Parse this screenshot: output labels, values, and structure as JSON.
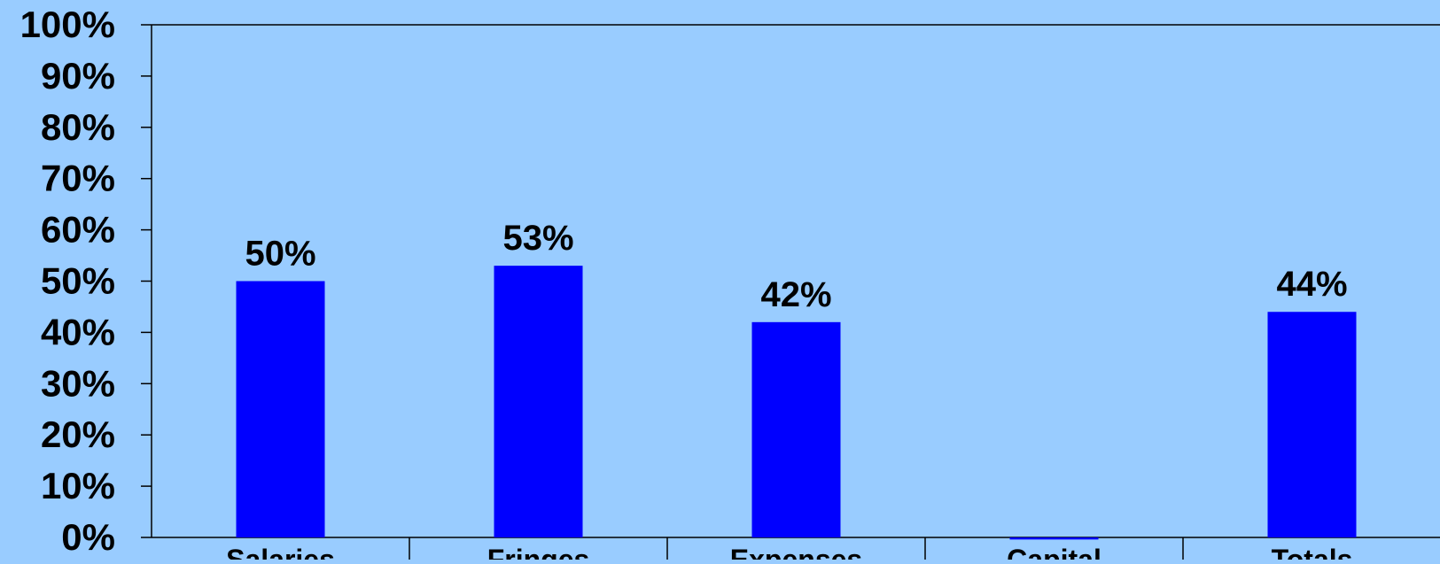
{
  "colors": {
    "background": "#99ccff",
    "plot_area": "#99ccff",
    "bar": "#0000ff",
    "axis": "#000000",
    "text": "#000000"
  },
  "chart_data": {
    "type": "bar",
    "title": "",
    "xlabel": "",
    "ylabel": "",
    "categories": [
      "Salaries",
      "Fringes",
      "Expenses",
      "Capital",
      "Totals"
    ],
    "values": [
      50,
      53,
      42,
      -0.4,
      44
    ],
    "data_labels": [
      "50%",
      "53%",
      "42%",
      "",
      "44%"
    ],
    "ylim": [
      0,
      100
    ],
    "y_ticks": [
      0,
      10,
      20,
      30,
      40,
      50,
      60,
      70,
      80,
      90,
      100
    ],
    "y_tick_labels": [
      "0%",
      "10%",
      "20%",
      "30%",
      "40%",
      "50%",
      "60%",
      "70%",
      "80%",
      "90%",
      "100%"
    ],
    "grid": false,
    "legend": "none"
  }
}
